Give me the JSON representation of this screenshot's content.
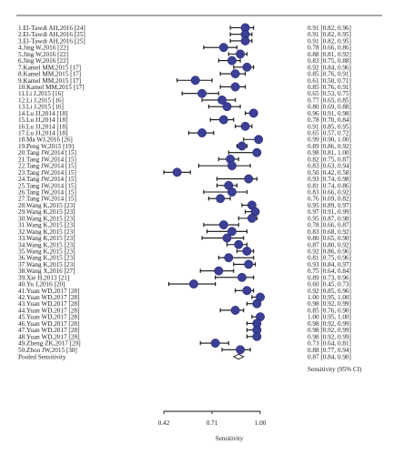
{
  "chart_data": {
    "type": "forest",
    "x_axis": {
      "label": "Sensitivity",
      "ticks": [
        0.42,
        0.71,
        1.0
      ],
      "tick_labels": [
        "0.42",
        "0.71",
        "1.00"
      ],
      "range": [
        0.42,
        1.0
      ]
    },
    "right_column_header": "Sensitivity (95% CI)",
    "pooled": {
      "label": "Pooled Sensitivity",
      "estimate": 0.87,
      "lower": 0.84,
      "upper": 0.9,
      "text": "0.87 [0.84, 0.90]"
    },
    "studies": [
      {
        "label": "1.El-Tawdi AH,2016 [24]",
        "estimate": 0.91,
        "lower": 0.82,
        "upper": 0.96,
        "text": "0.91 [0.82, 0.96]"
      },
      {
        "label": "2.El-Tawdi AH,2016 [25]",
        "estimate": 0.91,
        "lower": 0.82,
        "upper": 0.95,
        "text": "0.91 [0.82, 0.95]"
      },
      {
        "label": "3.El-Tawdi AH,2016 [25]",
        "estimate": 0.91,
        "lower": 0.82,
        "upper": 0.95,
        "text": "0.91 [0.82, 0.95]"
      },
      {
        "label": "4.Jing W,2016 [22]",
        "estimate": 0.78,
        "lower": 0.66,
        "upper": 0.86,
        "text": "0.78 [0.66, 0.86]"
      },
      {
        "label": "5.Jing W,2016 [22]",
        "estimate": 0.88,
        "lower": 0.81,
        "upper": 0.92,
        "text": "0.88 [0.81, 0.92]"
      },
      {
        "label": "6.Jing W,2016 [22]",
        "estimate": 0.83,
        "lower": 0.75,
        "upper": 0.88,
        "text": "0.83 [0.75, 0.88]"
      },
      {
        "label": "7.Kamel MM,2015 [17]",
        "estimate": 0.92,
        "lower": 0.84,
        "upper": 0.96,
        "text": "0.92 [0.84, 0.96]"
      },
      {
        "label": "8.Kamel MM,2015 [17]",
        "estimate": 0.85,
        "lower": 0.76,
        "upper": 0.91,
        "text": "0.85 [0.76, 0.91]"
      },
      {
        "label": "9.Kamel MM,2015 [17]",
        "estimate": 0.61,
        "lower": 0.5,
        "upper": 0.71,
        "text": "0.61 [0.50, 0.71]"
      },
      {
        "label": "10.Kamel MM,2015 [17]",
        "estimate": 0.85,
        "lower": 0.76,
        "upper": 0.91,
        "text": "0.85 [0.76, 0.91]"
      },
      {
        "label": "11.Li J,2015 [16]",
        "estimate": 0.65,
        "lower": 0.53,
        "upper": 0.75,
        "text": "0.65 [0.53, 0.75]"
      },
      {
        "label": "12.Li J,2015 [16]",
        "estimate": 0.77,
        "lower": 0.65,
        "upper": 0.85,
        "text": "0.77 [0.65, 0.85]"
      },
      {
        "label": "13.Li J,2015 [16]",
        "estimate": 0.8,
        "lower": 0.69,
        "upper": 0.88,
        "text": "0.80 [0.69, 0.88]"
      },
      {
        "label": "14.Lu JJ,2014 [18]",
        "estimate": 0.96,
        "lower": 0.91,
        "upper": 0.98,
        "text": "0.96 [0.91, 0.98]"
      },
      {
        "label": "15.Lu JJ,2014 [18]",
        "estimate": 0.78,
        "lower": 0.7,
        "upper": 0.84,
        "text": "0.78 [0.70, 0.84]"
      },
      {
        "label": "16.Lu JJ,2014 [18]",
        "estimate": 0.91,
        "lower": 0.85,
        "upper": 0.95,
        "text": "0.91 [0.85, 0.95]"
      },
      {
        "label": "17.Lu JJ,2014 [18]",
        "estimate": 0.65,
        "lower": 0.57,
        "upper": 0.72,
        "text": "0.65 [0.57, 0.72]"
      },
      {
        "label": "18.Ma WJ,2016 [26]",
        "estimate": 0.99,
        "lower": 0.9,
        "upper": 1.0,
        "text": "0.99 [0.90, 1.00]"
      },
      {
        "label": "19.Peng W,2015 [19]",
        "estimate": 0.89,
        "lower": 0.86,
        "upper": 0.92,
        "text": "0.89 [0.86, 0.92]"
      },
      {
        "label": "20.Tang JW,2014 [15]",
        "estimate": 0.98,
        "lower": 0.81,
        "upper": 1.0,
        "text": "0.98 [0.81, 1.00]"
      },
      {
        "label": "21.Tang JW,2014 [15]",
        "estimate": 0.82,
        "lower": 0.75,
        "upper": 0.87,
        "text": "0.82 [0.75, 0.87]"
      },
      {
        "label": "22.Tang JW,2014 [15]",
        "estimate": 0.83,
        "lower": 0.63,
        "upper": 0.94,
        "text": "0.83 [0.63, 0.94]"
      },
      {
        "label": "23.Tang JW,2014 [15]",
        "estimate": 0.5,
        "lower": 0.42,
        "upper": 0.58,
        "text": "0.50 [0.42, 0.58]"
      },
      {
        "label": "24.Tang JW,2014 [15]",
        "estimate": 0.93,
        "lower": 0.74,
        "upper": 0.98,
        "text": "0.93 [0.74, 0.98]"
      },
      {
        "label": "25.Tang JW,2014 [15]",
        "estimate": 0.81,
        "lower": 0.74,
        "upper": 0.86,
        "text": "0.81 [0.74, 0.86]"
      },
      {
        "label": "26.Tang JW,2014 [15]",
        "estimate": 0.83,
        "lower": 0.66,
        "upper": 0.92,
        "text": "0.83 [0.66, 0.92]"
      },
      {
        "label": "27.Tang JW,2014 [15]",
        "estimate": 0.76,
        "lower": 0.69,
        "upper": 0.82,
        "text": "0.76 [0.69, 0.82]"
      },
      {
        "label": "28.Wang K,2015 [23]",
        "estimate": 0.95,
        "lower": 0.89,
        "upper": 0.97,
        "text": "0.95 [0.89, 0.97]"
      },
      {
        "label": "29.Wang K,2015 [23]",
        "estimate": 0.97,
        "lower": 0.91,
        "upper": 0.99,
        "text": "0.97 [0.91, 0.99]"
      },
      {
        "label": "30.Wang K,2015 [23]",
        "estimate": 0.95,
        "lower": 0.87,
        "upper": 0.98,
        "text": "0.95 [0.87, 0.98]"
      },
      {
        "label": "31.Wang K,2015 [23]",
        "estimate": 0.78,
        "lower": 0.66,
        "upper": 0.87,
        "text": "0.78 [0.66, 0.87]"
      },
      {
        "label": "32.Wang K,2015 [23]",
        "estimate": 0.83,
        "lower": 0.68,
        "upper": 0.92,
        "text": "0.83 [0.68, 0.92]"
      },
      {
        "label": "33.Wang K,2015 [23]",
        "estimate": 0.8,
        "lower": 0.65,
        "upper": 0.9,
        "text": "0.80 [0.65, 0.90]"
      },
      {
        "label": "34.Wang K,2015 [23]",
        "estimate": 0.87,
        "lower": 0.8,
        "upper": 0.92,
        "text": "0.87 [0.80, 0.92]"
      },
      {
        "label": "35.Wang K,2015 [23]",
        "estimate": 0.92,
        "lower": 0.86,
        "upper": 0.96,
        "text": "0.92 [0.86, 0.96]"
      },
      {
        "label": "36.Wang K,2015 [23]",
        "estimate": 0.81,
        "lower": 0.75,
        "upper": 0.96,
        "text": "0.81 [0.75, 0.96]"
      },
      {
        "label": "37.Wang K,2015 [23]",
        "estimate": 0.93,
        "lower": 0.84,
        "upper": 0.97,
        "text": "0.93 [0.84, 0.97]"
      },
      {
        "label": "38.Wang X,2016 [27]",
        "estimate": 0.75,
        "lower": 0.64,
        "upper": 0.84,
        "text": "0.75 [0.64, 0.84]"
      },
      {
        "label": "39.Xie H,2013 [21]",
        "estimate": 0.89,
        "lower": 0.73,
        "upper": 0.96,
        "text": "0.89 [0.73, 0.96]"
      },
      {
        "label": "40.Yu J,2016 [20]",
        "estimate": 0.6,
        "lower": 0.45,
        "upper": 0.73,
        "text": "0.60 [0.45, 0.73]"
      },
      {
        "label": "41.Yuan WD,2017 [28]",
        "estimate": 0.92,
        "lower": 0.85,
        "upper": 0.96,
        "text": "0.92 [0.85, 0.96]"
      },
      {
        "label": "42.Yuan WD,2017 [28]",
        "estimate": 1.0,
        "lower": 0.95,
        "upper": 1.0,
        "text": "1.00 [0.95, 1.00]"
      },
      {
        "label": "43.Yuan WD,2017 [28]",
        "estimate": 0.98,
        "lower": 0.92,
        "upper": 0.99,
        "text": "0.98 [0.92, 0.99]"
      },
      {
        "label": "44.Yuan WD,2017 [28]",
        "estimate": 0.85,
        "lower": 0.76,
        "upper": 0.9,
        "text": "0.85 [0.76, 0.90]"
      },
      {
        "label": "45.Yuan WD,2017 [28]",
        "estimate": 1.0,
        "lower": 0.95,
        "upper": 1.0,
        "text": "1.00 [0.95, 1.00]"
      },
      {
        "label": "46.Yuan WD,2017 [28]",
        "estimate": 0.98,
        "lower": 0.92,
        "upper": 0.99,
        "text": "0.98 [0.92, 0.99]"
      },
      {
        "label": "47.Yuan WD,2017 [28]",
        "estimate": 0.98,
        "lower": 0.92,
        "upper": 0.99,
        "text": "0.98 [0.92, 0.99]"
      },
      {
        "label": "48.Yuan WD,2017 [28]",
        "estimate": 0.98,
        "lower": 0.92,
        "upper": 0.99,
        "text": "0.98 [0.92, 0.99]"
      },
      {
        "label": "49.Zheng ZK,2017 [29]",
        "estimate": 0.73,
        "lower": 0.64,
        "upper": 0.81,
        "text": "0.73 [0.64, 0.81]"
      },
      {
        "label": "50.Zhou JW,2015 [30]",
        "estimate": 0.88,
        "lower": 0.77,
        "upper": 0.94,
        "text": "0.88 [0.77, 0.94]"
      }
    ],
    "colors": {
      "marker_fill": "#3b3f95",
      "marker_stroke": "#1f2266",
      "line": "#111111",
      "diamond": "#ffffff"
    }
  }
}
